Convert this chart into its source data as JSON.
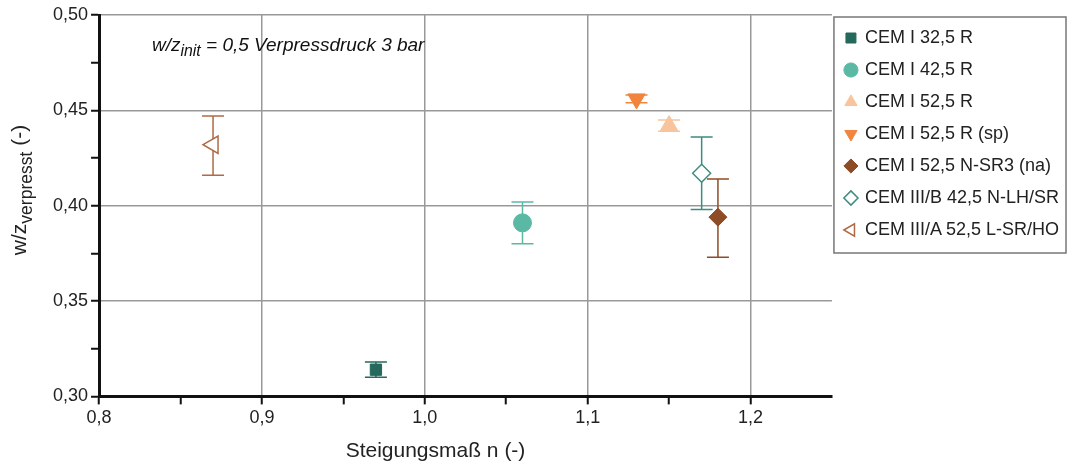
{
  "chart_data": {
    "type": "scatter",
    "xlabel": "Steigungsmaß n (-)",
    "ylabel": "w/z$_{verpresst}$ (-)",
    "annotations": [
      "w/z$_{init}$ = 0,5   Verpressdruck 3 bar"
    ],
    "xlim": [
      0.8,
      1.25
    ],
    "ylim": [
      0.3,
      0.5
    ],
    "xticks": [
      {
        "value": 0.8,
        "label": "0,8"
      },
      {
        "value": 0.85,
        "label": null
      },
      {
        "value": 0.9,
        "label": "0,9"
      },
      {
        "value": 0.95,
        "label": null
      },
      {
        "value": 1.0,
        "label": "1,0"
      },
      {
        "value": 1.05,
        "label": null
      },
      {
        "value": 1.1,
        "label": "1,1"
      },
      {
        "value": 1.15,
        "label": null
      },
      {
        "value": 1.2,
        "label": "1,2"
      }
    ],
    "yticks": [
      {
        "value": 0.3,
        "label": "0,30"
      },
      {
        "value": 0.325,
        "label": null
      },
      {
        "value": 0.35,
        "label": "0,35"
      },
      {
        "value": 0.375,
        "label": null
      },
      {
        "value": 0.4,
        "label": "0,40"
      },
      {
        "value": 0.425,
        "label": null
      },
      {
        "value": 0.45,
        "label": "0,45"
      },
      {
        "value": 0.475,
        "label": null
      },
      {
        "value": 0.5,
        "label": "0,50"
      }
    ],
    "grid": true,
    "legend": "right",
    "series": [
      {
        "name": "CEM I 32,5 R",
        "color": "#24695c",
        "marker": "square",
        "x": [
          0.97
        ],
        "values": [
          0.314
        ],
        "errors": [
          0.004
        ]
      },
      {
        "name": "CEM I 42,5 R",
        "color": "#5ab9a5",
        "marker": "circle",
        "x": [
          1.06
        ],
        "values": [
          0.391
        ],
        "errors": [
          [
            0.38,
            0.402
          ]
        ]
      },
      {
        "name": "CEM I 52,5 R",
        "color": "#f8c49d",
        "marker": "triangle",
        "x": [
          1.15
        ],
        "values": [
          0.442
        ],
        "errors": [
          0.003
        ]
      },
      {
        "name": "CEM I 52,5 R (sp)",
        "color": "#f1853d",
        "marker": "triangle-down",
        "x": [
          1.13
        ],
        "values": [
          0.456
        ],
        "errors": [
          0.002
        ]
      },
      {
        "name": "CEM I 52,5 N-SR3 (na)",
        "color": "#8e4c26",
        "marker": "diamond",
        "x": [
          1.18
        ],
        "values": [
          0.394
        ],
        "errors": [
          [
            0.373,
            0.414
          ]
        ]
      },
      {
        "name": "CEM III/B 42,5 N-LH/SR",
        "color": "#3f8b80",
        "marker": "diamond-open",
        "x": [
          1.17
        ],
        "values": [
          0.417
        ],
        "errors": [
          [
            0.398,
            0.436
          ]
        ]
      },
      {
        "name": "CEM III/A 52,5 L-SR/HO",
        "color": "#b06a44",
        "marker": "triangle-left-open",
        "x": [
          0.87
        ],
        "values": [
          0.432
        ],
        "errors": [
          [
            0.416,
            0.447
          ]
        ]
      }
    ]
  }
}
